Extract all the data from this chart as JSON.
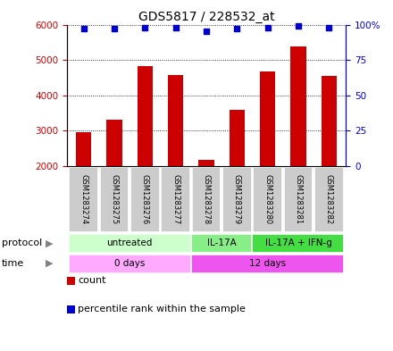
{
  "title": "GDS5817 / 228532_at",
  "samples": [
    "GSM1283274",
    "GSM1283275",
    "GSM1283276",
    "GSM1283277",
    "GSM1283278",
    "GSM1283279",
    "GSM1283280",
    "GSM1283281",
    "GSM1283282"
  ],
  "counts": [
    2950,
    3300,
    4820,
    4580,
    2180,
    3580,
    4680,
    5380,
    4550
  ],
  "percentile_ranks": [
    97,
    97,
    98,
    98,
    95,
    97,
    98,
    99,
    98
  ],
  "bar_color": "#cc0000",
  "dot_color": "#0000cc",
  "ylim_left": [
    2000,
    6000
  ],
  "ylim_right": [
    0,
    100
  ],
  "yticks_left": [
    2000,
    3000,
    4000,
    5000,
    6000
  ],
  "yticks_right": [
    0,
    25,
    50,
    75,
    100
  ],
  "protocol_groups": [
    {
      "label": "untreated",
      "start": 0,
      "end": 4,
      "color": "#ccffcc"
    },
    {
      "label": "IL-17A",
      "start": 4,
      "end": 6,
      "color": "#88ee88"
    },
    {
      "label": "IL-17A + IFN-g",
      "start": 6,
      "end": 9,
      "color": "#44dd44"
    }
  ],
  "time_groups": [
    {
      "label": "0 days",
      "start": 0,
      "end": 4,
      "color": "#ffaaff"
    },
    {
      "label": "12 days",
      "start": 4,
      "end": 9,
      "color": "#ee55ee"
    }
  ],
  "sample_bg_color": "#cccccc",
  "bar_width": 0.5,
  "title_fontsize": 10,
  "tick_fontsize": 7.5,
  "annotation_fontsize": 7.5
}
